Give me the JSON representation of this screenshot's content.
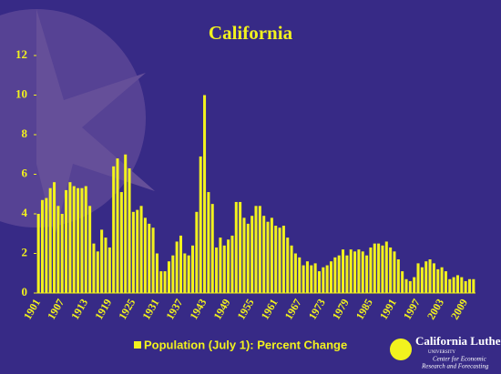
{
  "chart_data": {
    "type": "bar",
    "title": "California",
    "categories": [
      "1901",
      null,
      null,
      null,
      null,
      null,
      "1907",
      null,
      null,
      null,
      null,
      null,
      "1913",
      null,
      null,
      null,
      null,
      null,
      "1919",
      null,
      null,
      null,
      null,
      null,
      "1925",
      null,
      null,
      null,
      null,
      null,
      "1931",
      null,
      null,
      null,
      null,
      null,
      "1937",
      null,
      null,
      null,
      null,
      null,
      "1943",
      null,
      null,
      null,
      null,
      null,
      "1949",
      null,
      null,
      null,
      null,
      null,
      "1955",
      null,
      null,
      null,
      null,
      null,
      "1961",
      null,
      null,
      null,
      null,
      null,
      "1967",
      null,
      null,
      null,
      null,
      null,
      "1973",
      null,
      null,
      null,
      null,
      null,
      "1979",
      null,
      null,
      null,
      null,
      null,
      "1985",
      null,
      null,
      null,
      null,
      null,
      "1991",
      null,
      null,
      null,
      null,
      null,
      "1997",
      null,
      null,
      null,
      null,
      null,
      "2003",
      null,
      null,
      null,
      null,
      null,
      "2009",
      null,
      null
    ],
    "series": [
      {
        "name": "Population (July 1): Percent Change",
        "color": "#f2f21e",
        "values": [
          4.0,
          4.7,
          4.8,
          5.3,
          5.6,
          4.4,
          4.0,
          5.2,
          5.6,
          5.4,
          5.3,
          5.3,
          5.4,
          4.4,
          2.5,
          2.1,
          3.2,
          2.8,
          2.3,
          6.4,
          6.8,
          5.1,
          7.0,
          6.3,
          4.1,
          4.2,
          4.4,
          3.8,
          3.5,
          3.3,
          2.0,
          1.1,
          1.1,
          1.6,
          1.9,
          2.6,
          2.9,
          2.0,
          1.9,
          2.4,
          4.1,
          6.9,
          10.0,
          5.1,
          4.5,
          2.3,
          2.8,
          2.4,
          2.7,
          2.9,
          4.6,
          4.6,
          3.8,
          3.5,
          3.9,
          4.4,
          4.4,
          3.9,
          3.6,
          3.8,
          3.4,
          3.3,
          3.4,
          2.8,
          2.4,
          2.0,
          1.8,
          1.4,
          1.6,
          1.4,
          1.5,
          1.1,
          1.3,
          1.4,
          1.6,
          1.8,
          1.9,
          2.2,
          1.9,
          2.2,
          2.1,
          2.2,
          2.1,
          1.9,
          2.3,
          2.5,
          2.5,
          2.4,
          2.6,
          2.3,
          2.1,
          1.7,
          1.1,
          0.7,
          0.6,
          0.8,
          1.5,
          1.3,
          1.6,
          1.7,
          1.5,
          1.2,
          1.3,
          1.1,
          0.7,
          0.8,
          0.9,
          0.8,
          0.6,
          0.7,
          0.7
        ]
      }
    ],
    "ylim": [
      0,
      12
    ],
    "yticks": [
      0,
      2,
      4,
      6,
      8,
      10,
      12
    ],
    "legend": "bottom",
    "logo": {
      "name": "California Lutheran",
      "sub": "UNIVERSITY",
      "line1": "Center for Economic",
      "line2": "Research and Forecasting"
    }
  }
}
